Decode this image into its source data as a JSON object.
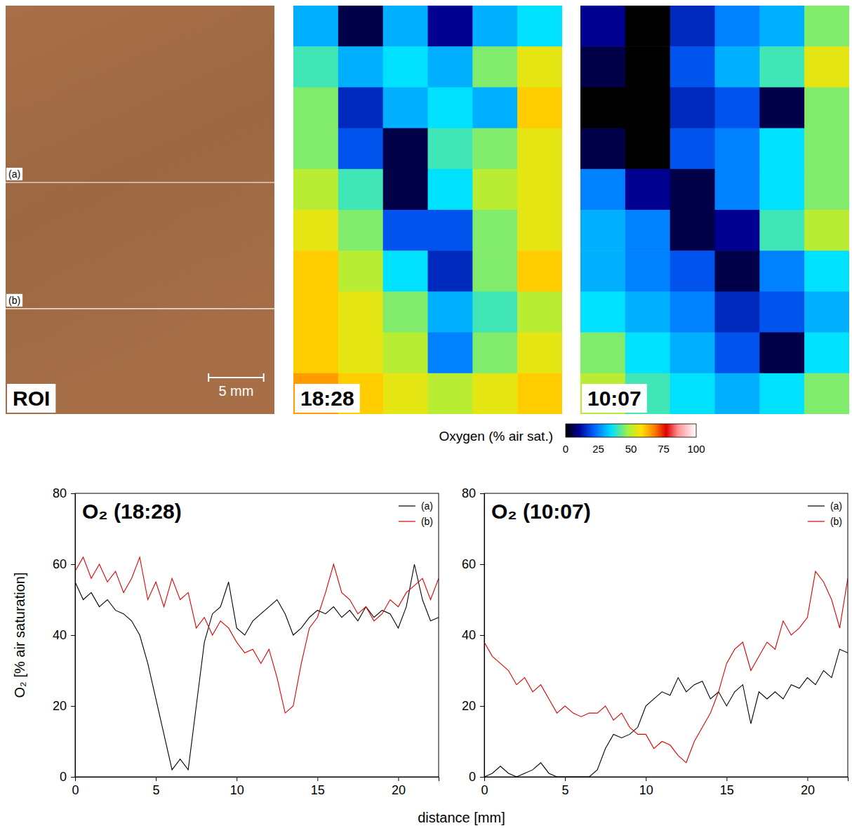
{
  "chart_data": [
    {
      "type": "image",
      "title": "ROI",
      "profile_labels": [
        "(a)",
        "(b)"
      ],
      "scale_bar": "5 mm"
    },
    {
      "type": "heatmap",
      "title": "18:28",
      "cells": [
        [
          30,
          5,
          30,
          10,
          30,
          35
        ],
        [
          40,
          30,
          35,
          30,
          45,
          55
        ],
        [
          45,
          15,
          30,
          35,
          30,
          60
        ],
        [
          45,
          20,
          5,
          40,
          45,
          55
        ],
        [
          50,
          40,
          5,
          35,
          50,
          55
        ],
        [
          55,
          45,
          20,
          20,
          45,
          55
        ],
        [
          60,
          50,
          35,
          15,
          45,
          60
        ],
        [
          60,
          55,
          45,
          30,
          40,
          50
        ],
        [
          60,
          55,
          50,
          25,
          45,
          55
        ],
        [
          65,
          60,
          55,
          50,
          55,
          60
        ]
      ]
    },
    {
      "type": "heatmap",
      "title": "10:07",
      "cells": [
        [
          10,
          0,
          15,
          25,
          30,
          45
        ],
        [
          5,
          0,
          20,
          30,
          40,
          55
        ],
        [
          0,
          0,
          15,
          20,
          5,
          45
        ],
        [
          5,
          0,
          20,
          25,
          35,
          45
        ],
        [
          25,
          10,
          5,
          25,
          35,
          45
        ],
        [
          30,
          25,
          5,
          10,
          40,
          50
        ],
        [
          30,
          25,
          20,
          5,
          25,
          35
        ],
        [
          35,
          30,
          25,
          15,
          20,
          30
        ],
        [
          45,
          35,
          30,
          20,
          5,
          35
        ],
        [
          50,
          40,
          35,
          30,
          35,
          45
        ]
      ]
    },
    {
      "type": "line",
      "title": "O₂ (18:28)",
      "ylabel": "O₂ [% air saturation]",
      "x": [
        0,
        0.5,
        1,
        1.5,
        2,
        2.5,
        3,
        3.5,
        4,
        4.5,
        5,
        5.5,
        6,
        6.5,
        7,
        7.5,
        8,
        8.5,
        9,
        9.5,
        10,
        10.5,
        11,
        11.5,
        12,
        12.5,
        13,
        13.5,
        14,
        14.5,
        15,
        15.5,
        16,
        16.5,
        17,
        17.5,
        18,
        18.5,
        19,
        19.5,
        20,
        20.5,
        21,
        21.5,
        22,
        22.5
      ],
      "xlim": [
        0,
        22.5
      ],
      "xticks": [
        0,
        5,
        10,
        15,
        20
      ],
      "ylim": [
        0,
        80
      ],
      "yticks": [
        0,
        20,
        40,
        60,
        80
      ],
      "legend": "upper right",
      "series": [
        {
          "name": "(a)",
          "color": "#000000",
          "values": [
            55,
            50,
            52,
            48,
            50,
            47,
            46,
            44,
            40,
            32,
            22,
            12,
            2,
            5,
            2,
            20,
            38,
            46,
            48,
            55,
            42,
            40,
            44,
            46,
            48,
            50,
            46,
            40,
            42,
            45,
            47,
            46,
            48,
            45,
            47,
            44,
            48,
            45,
            47,
            46,
            42,
            48,
            60,
            50,
            44,
            45
          ]
        },
        {
          "name": "(b)",
          "color": "#e00000",
          "values": [
            58,
            62,
            56,
            60,
            55,
            58,
            52,
            56,
            62,
            50,
            55,
            48,
            56,
            50,
            52,
            42,
            45,
            40,
            44,
            42,
            38,
            35,
            36,
            32,
            36,
            28,
            18,
            20,
            32,
            42,
            45,
            52,
            60,
            52,
            50,
            46,
            48,
            44,
            46,
            50,
            48,
            52,
            54,
            56,
            50,
            56
          ]
        }
      ]
    },
    {
      "type": "line",
      "title": "O₂ (10:07)",
      "x": [
        0,
        0.5,
        1,
        1.5,
        2,
        2.5,
        3,
        3.5,
        4,
        4.5,
        5,
        5.5,
        6,
        6.5,
        7,
        7.5,
        8,
        8.5,
        9,
        9.5,
        10,
        10.5,
        11,
        11.5,
        12,
        12.5,
        13,
        13.5,
        14,
        14.5,
        15,
        15.5,
        16,
        16.5,
        17,
        17.5,
        18,
        18.5,
        19,
        19.5,
        20,
        20.5,
        21,
        21.5,
        22,
        22.5
      ],
      "xlim": [
        0,
        22.5
      ],
      "xticks": [
        0,
        5,
        10,
        15,
        20
      ],
      "ylim": [
        0,
        80
      ],
      "yticks": [
        0,
        20,
        40,
        60,
        80
      ],
      "legend": "upper right",
      "series": [
        {
          "name": "(a)",
          "color": "#000000",
          "values": [
            0,
            1,
            3,
            1,
            0,
            1,
            2,
            4,
            1,
            0,
            0,
            0,
            0,
            0,
            2,
            8,
            12,
            11,
            12,
            14,
            20,
            22,
            24,
            23,
            28,
            24,
            26,
            27,
            22,
            24,
            20,
            24,
            26,
            15,
            24,
            22,
            24,
            22,
            26,
            25,
            28,
            26,
            30,
            28,
            36,
            35
          ]
        },
        {
          "name": "(b)",
          "color": "#e00000",
          "values": [
            38,
            34,
            32,
            30,
            26,
            28,
            24,
            26,
            22,
            18,
            20,
            18,
            17,
            18,
            18,
            20,
            16,
            18,
            14,
            12,
            12,
            8,
            10,
            9,
            6,
            4,
            10,
            14,
            18,
            24,
            32,
            36,
            38,
            30,
            34,
            38,
            36,
            44,
            40,
            42,
            45,
            58,
            55,
            50,
            42,
            56
          ]
        }
      ]
    }
  ],
  "colorbar": {
    "title": "Oxygen (% air sat.)",
    "range": [
      0,
      100
    ],
    "ticks": [
      0,
      25,
      50,
      75,
      100
    ]
  },
  "x_axis_title": "distance [mm]"
}
